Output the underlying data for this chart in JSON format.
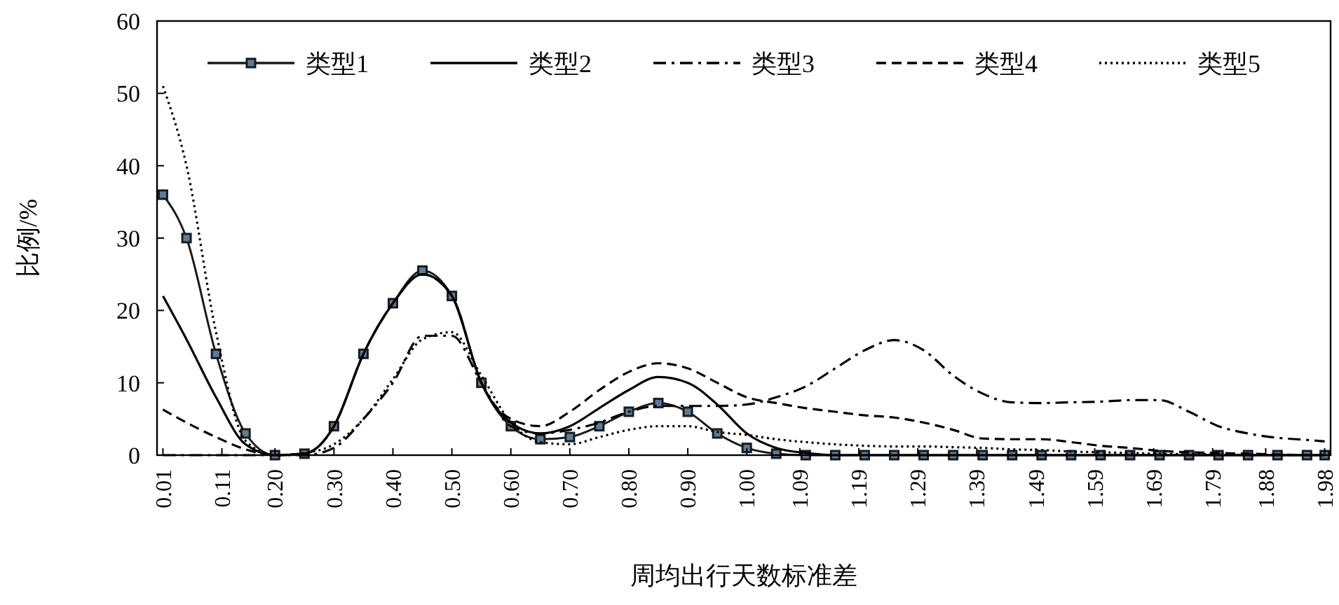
{
  "chart_data": {
    "type": "line",
    "xlabel": "周均出行天数标准差",
    "ylabel": "比例/%",
    "x": [
      0.01,
      0.05,
      0.1,
      0.15,
      0.2,
      0.25,
      0.3,
      0.35,
      0.4,
      0.45,
      0.5,
      0.55,
      0.6,
      0.65,
      0.7,
      0.75,
      0.8,
      0.85,
      0.9,
      0.95,
      1.0,
      1.05,
      1.1,
      1.15,
      1.2,
      1.25,
      1.3,
      1.35,
      1.4,
      1.45,
      1.5,
      1.55,
      1.6,
      1.65,
      1.7,
      1.75,
      1.8,
      1.85,
      1.9,
      1.95,
      1.98
    ],
    "xlim": [
      0,
      1.99
    ],
    "xticks": [
      {
        "value": 0.01,
        "label": "0.01"
      },
      {
        "value": 0.11,
        "label": "0.11"
      },
      {
        "value": 0.2,
        "label": "0.20"
      },
      {
        "value": 0.3,
        "label": "0.30"
      },
      {
        "value": 0.4,
        "label": "0.40"
      },
      {
        "value": 0.5,
        "label": "0.50"
      },
      {
        "value": 0.6,
        "label": "0.60"
      },
      {
        "value": 0.7,
        "label": "0.70"
      },
      {
        "value": 0.8,
        "label": "0.80"
      },
      {
        "value": 0.9,
        "label": "0.90"
      },
      {
        "value": 1.0,
        "label": "1.00"
      },
      {
        "value": 1.09,
        "label": "1.09"
      },
      {
        "value": 1.19,
        "label": "1.19"
      },
      {
        "value": 1.29,
        "label": "1.29"
      },
      {
        "value": 1.39,
        "label": "1.39"
      },
      {
        "value": 1.49,
        "label": "1.49"
      },
      {
        "value": 1.59,
        "label": "1.59"
      },
      {
        "value": 1.69,
        "label": "1.69"
      },
      {
        "value": 1.79,
        "label": "1.79"
      },
      {
        "value": 1.88,
        "label": "1.88"
      },
      {
        "value": 1.98,
        "label": "1.98"
      }
    ],
    "ylim": [
      0,
      60
    ],
    "yticks": [
      0,
      10,
      20,
      30,
      40,
      50,
      60
    ],
    "grid": false,
    "legend": "top",
    "series": [
      {
        "name": "类型1",
        "color": "#1a1a1a",
        "marker": "square",
        "line_style": "solid",
        "values": [
          36,
          30,
          14,
          3,
          0,
          0.2,
          4,
          14,
          21,
          25.5,
          22,
          10,
          4,
          2.2,
          2.5,
          4,
          6,
          7.2,
          6,
          3,
          1,
          0.2,
          0,
          0,
          0,
          0,
          0,
          0,
          0,
          0,
          0,
          0,
          0,
          0,
          0,
          0,
          0,
          0,
          0,
          0,
          0
        ]
      },
      {
        "name": "类型2",
        "color": "#000000",
        "line_style": "solid",
        "values": [
          22,
          16,
          8,
          1.5,
          0,
          0.2,
          4,
          14,
          21,
          25,
          22,
          10,
          4.5,
          3,
          4,
          6.5,
          9,
          10.8,
          10,
          7,
          3,
          1,
          0.3,
          0,
          0,
          0,
          0,
          0,
          0,
          0,
          0,
          0,
          0,
          0,
          0,
          0,
          0,
          0,
          0,
          0,
          0
        ]
      },
      {
        "name": "类型3",
        "color": "#000000",
        "line_style": "dashdot",
        "values": [
          0,
          0,
          0,
          0,
          0,
          0,
          1,
          5,
          10,
          16.5,
          16.5,
          10,
          4,
          3,
          3.5,
          4.5,
          6,
          6.8,
          6.8,
          6.8,
          7,
          8,
          9.5,
          12,
          14.5,
          15.9,
          14.5,
          11,
          8.5,
          7.3,
          7.2,
          7.3,
          7.4,
          7.6,
          7.6,
          6,
          4,
          3,
          2.4,
          2.1,
          1.9
        ]
      },
      {
        "name": "类型4",
        "color": "#000000",
        "line_style": "dashed",
        "values": [
          6.3,
          4.5,
          2.5,
          0.8,
          0,
          0.2,
          4,
          14,
          21,
          25,
          22,
          10,
          5,
          4,
          6,
          9,
          11.5,
          12.7,
          12,
          10,
          8,
          7.2,
          6.5,
          6,
          5.5,
          5.2,
          4.5,
          3.5,
          2.3,
          2.2,
          2.2,
          1.8,
          1.3,
          1,
          0.6,
          0.4,
          0.3,
          0.2,
          0.1,
          0,
          0
        ]
      },
      {
        "name": "类型5",
        "color": "#000000",
        "line_style": "dotted",
        "values": [
          51,
          40,
          17,
          2,
          0,
          0.3,
          1.5,
          5,
          10.5,
          16,
          17,
          11,
          4.5,
          1.8,
          1.5,
          2.5,
          3.5,
          4,
          4,
          3.2,
          2.8,
          2.2,
          1.8,
          1.5,
          1.3,
          1.2,
          1.2,
          1.1,
          1,
          0.8,
          0.7,
          0.5,
          0.4,
          0.3,
          0.2,
          0.15,
          0.1,
          0,
          0,
          0,
          0
        ]
      }
    ]
  }
}
